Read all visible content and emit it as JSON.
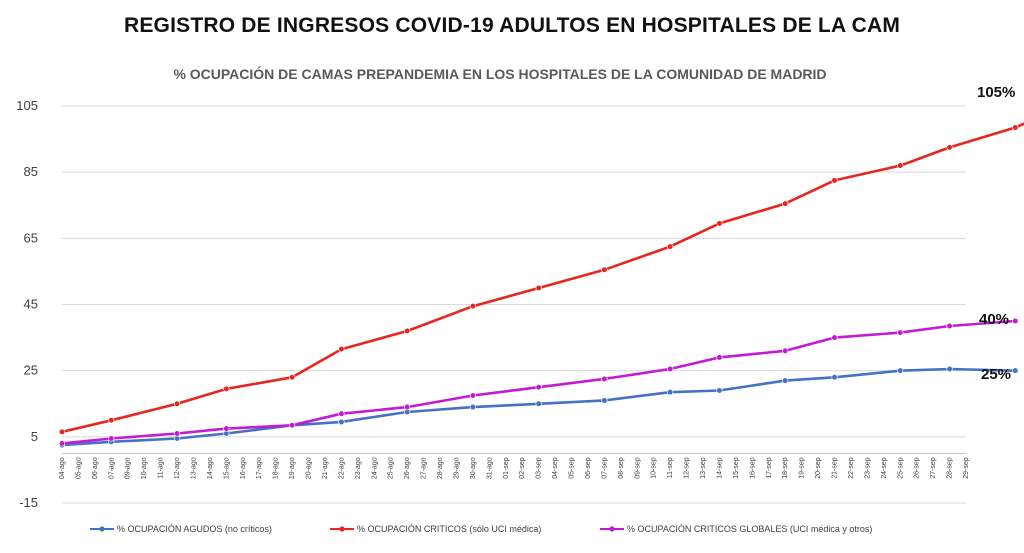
{
  "title": "REGISTRO DE INGRESOS COVID-19 ADULTOS  EN HOSPITALES DE LA CAM",
  "chart_data": {
    "type": "line",
    "title": "% OCUPACIÓN DE CAMAS PREPANDEMIA EN LOS HOSPITALES DE LA COMUNIDAD DE MADRID",
    "xlabel": "",
    "ylabel": "",
    "ylim": [
      -15,
      105
    ],
    "yticks": [
      -15,
      5,
      25,
      45,
      65,
      85,
      105
    ],
    "grid": true,
    "legend": "bottom",
    "x": [
      "04-ago",
      "05-ago",
      "06-ago",
      "07-ago",
      "09-ago",
      "10-ago",
      "11-ago",
      "12-ago",
      "13-ago",
      "14-ago",
      "15-ago",
      "16-ago",
      "17-ago",
      "18-ago",
      "19-ago",
      "20-ago",
      "21-ago",
      "22-ago",
      "23-ago",
      "24-ago",
      "25-ago",
      "26-ago",
      "27-ago",
      "28-ago",
      "29-ago",
      "30-ago",
      "31-ago",
      "01-sep",
      "02-sep",
      "03-sep",
      "04-sep",
      "05-sep",
      "06-sep",
      "07-sep",
      "08-sep",
      "09-sep",
      "10-sep",
      "11-sep",
      "12-sep",
      "13-sep",
      "14-sep",
      "15-sep",
      "16-sep",
      "17-sep",
      "18-sep",
      "19-sep",
      "20-sep",
      "21-sep",
      "22-sep",
      "23-sep",
      "24-sep",
      "25-sep",
      "26-sep",
      "27-sep",
      "28-sep",
      "29-sep"
    ],
    "series": [
      {
        "name": "% OCUPACIÓN AGUDOS (no críticos)",
        "color": "#4472c4",
        "points": [
          [
            0,
            2.5
          ],
          [
            3,
            3.5
          ],
          [
            7,
            4.5
          ],
          [
            10,
            6
          ],
          [
            14,
            8.5
          ],
          [
            17,
            9.5
          ],
          [
            21,
            12.5
          ],
          [
            25,
            14
          ],
          [
            29,
            15
          ],
          [
            33,
            16
          ],
          [
            37,
            18.5
          ],
          [
            40,
            19
          ],
          [
            44,
            22
          ],
          [
            47,
            23
          ],
          [
            51,
            25
          ],
          [
            54,
            25.5
          ],
          [
            58,
            25
          ]
        ]
      },
      {
        "name": "% OCUPACIÓN CRITICOS (sólo UCI médica)",
        "color": "#e8261e",
        "points": [
          [
            0,
            6.5
          ],
          [
            3,
            10
          ],
          [
            7,
            15
          ],
          [
            10,
            19.5
          ],
          [
            14,
            23
          ],
          [
            17,
            31.5
          ],
          [
            21,
            37
          ],
          [
            25,
            44.5
          ],
          [
            29,
            50
          ],
          [
            33,
            55.5
          ],
          [
            37,
            62.5
          ],
          [
            40,
            69.5
          ],
          [
            44,
            75.5
          ],
          [
            47,
            82.5
          ],
          [
            51,
            87
          ],
          [
            54,
            92.5
          ],
          [
            58,
            98.5
          ],
          [
            61,
            105
          ]
        ]
      },
      {
        "name": "% OCUPACIÓN CRITICOS GLOBALES  (UCI médica y otros)",
        "color": "#c31ad6",
        "points": [
          [
            0,
            3
          ],
          [
            3,
            4.5
          ],
          [
            7,
            6
          ],
          [
            10,
            7.5
          ],
          [
            14,
            8.5
          ],
          [
            17,
            12
          ],
          [
            21,
            14
          ],
          [
            25,
            17.5
          ],
          [
            29,
            20
          ],
          [
            33,
            22.5
          ],
          [
            37,
            25.5
          ],
          [
            40,
            29
          ],
          [
            44,
            31
          ],
          [
            47,
            35
          ],
          [
            51,
            36.5
          ],
          [
            54,
            38.5
          ],
          [
            58,
            40
          ]
        ]
      }
    ],
    "end_labels": [
      "105%",
      "40%",
      "25%"
    ]
  }
}
